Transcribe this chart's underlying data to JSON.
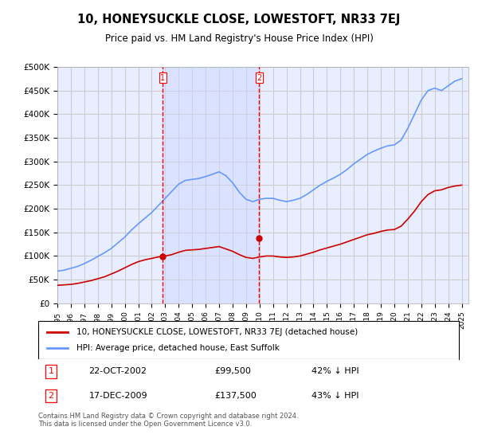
{
  "title": "10, HONEYSUCKLE CLOSE, LOWESTOFT, NR33 7EJ",
  "subtitle": "Price paid vs. HM Land Registry's House Price Index (HPI)",
  "title_fontsize": 11,
  "subtitle_fontsize": 9,
  "ylabel_ticks": [
    "£0",
    "£50K",
    "£100K",
    "£150K",
    "£200K",
    "£250K",
    "£300K",
    "£350K",
    "£400K",
    "£450K",
    "£500K"
  ],
  "ytick_vals": [
    0,
    50000,
    100000,
    150000,
    200000,
    250000,
    300000,
    350000,
    400000,
    450000,
    500000
  ],
  "ylim": [
    0,
    500000
  ],
  "xlim_min": 1995.0,
  "xlim_max": 2025.5,
  "background_color": "#f0f4ff",
  "plot_bg_color": "#e8eeff",
  "grid_color": "#cccccc",
  "hpi_line_color": "#6699ff",
  "price_line_color": "#cc0000",
  "marker1_date_x": 2002.81,
  "marker1_price": 99500,
  "marker2_date_x": 2009.96,
  "marker2_price": 137500,
  "legend_label_red": "10, HONEYSUCKLE CLOSE, LOWESTOFT, NR33 7EJ (detached house)",
  "legend_label_blue": "HPI: Average price, detached house, East Suffolk",
  "table_row1": [
    "1",
    "22-OCT-2002",
    "£99,500",
    "42% ↓ HPI"
  ],
  "table_row2": [
    "2",
    "17-DEC-2009",
    "£137,500",
    "43% ↓ HPI"
  ],
  "footer": "Contains HM Land Registry data © Crown copyright and database right 2024.\nThis data is licensed under the Open Government Licence v3.0.",
  "hpi_x": [
    1995,
    1995.5,
    1996,
    1996.5,
    1997,
    1997.5,
    1998,
    1998.5,
    1999,
    1999.5,
    2000,
    2000.5,
    2001,
    2001.5,
    2002,
    2002.5,
    2003,
    2003.5,
    2004,
    2004.5,
    2005,
    2005.5,
    2006,
    2006.5,
    2007,
    2007.5,
    2008,
    2008.5,
    2009,
    2009.5,
    2010,
    2010.5,
    2011,
    2011.5,
    2012,
    2012.5,
    2013,
    2013.5,
    2014,
    2014.5,
    2015,
    2015.5,
    2016,
    2016.5,
    2017,
    2017.5,
    2018,
    2018.5,
    2019,
    2019.5,
    2020,
    2020.5,
    2021,
    2021.5,
    2022,
    2022.5,
    2023,
    2023.5,
    2024,
    2024.5,
    2025
  ],
  "hpi_y": [
    68000,
    70000,
    74000,
    78000,
    84000,
    91000,
    99000,
    107000,
    116000,
    128000,
    140000,
    155000,
    168000,
    180000,
    192000,
    207000,
    222000,
    237000,
    252000,
    260000,
    262000,
    264000,
    268000,
    273000,
    278000,
    270000,
    255000,
    235000,
    220000,
    215000,
    220000,
    222000,
    222000,
    218000,
    215000,
    218000,
    222000,
    230000,
    240000,
    250000,
    258000,
    265000,
    273000,
    283000,
    295000,
    305000,
    315000,
    322000,
    328000,
    333000,
    335000,
    345000,
    370000,
    400000,
    430000,
    450000,
    455000,
    450000,
    460000,
    470000,
    475000
  ],
  "price_x": [
    1995,
    1995.5,
    1996,
    1996.5,
    1997,
    1997.5,
    1998,
    1998.5,
    1999,
    1999.5,
    2000,
    2000.5,
    2001,
    2001.5,
    2002,
    2002.5,
    2003,
    2003.5,
    2004,
    2004.5,
    2005,
    2005.5,
    2006,
    2006.5,
    2007,
    2007.5,
    2008,
    2008.5,
    2009,
    2009.5,
    2010,
    2010.5,
    2011,
    2011.5,
    2012,
    2012.5,
    2013,
    2013.5,
    2014,
    2014.5,
    2015,
    2015.5,
    2016,
    2016.5,
    2017,
    2017.5,
    2018,
    2018.5,
    2019,
    2019.5,
    2020,
    2020.5,
    2021,
    2021.5,
    2022,
    2022.5,
    2023,
    2023.5,
    2024,
    2024.5,
    2025
  ],
  "price_y": [
    38000,
    39000,
    40000,
    42000,
    45000,
    48000,
    52000,
    56000,
    62000,
    68000,
    75000,
    82000,
    88000,
    92000,
    95000,
    98000,
    100000,
    103000,
    108000,
    112000,
    113000,
    114000,
    116000,
    118000,
    120000,
    115000,
    110000,
    103000,
    97000,
    95000,
    98000,
    100000,
    100000,
    98000,
    97000,
    98000,
    100000,
    104000,
    108000,
    113000,
    117000,
    121000,
    125000,
    130000,
    135000,
    140000,
    145000,
    148000,
    152000,
    155000,
    156000,
    163000,
    178000,
    195000,
    215000,
    230000,
    238000,
    240000,
    245000,
    248000,
    250000
  ]
}
